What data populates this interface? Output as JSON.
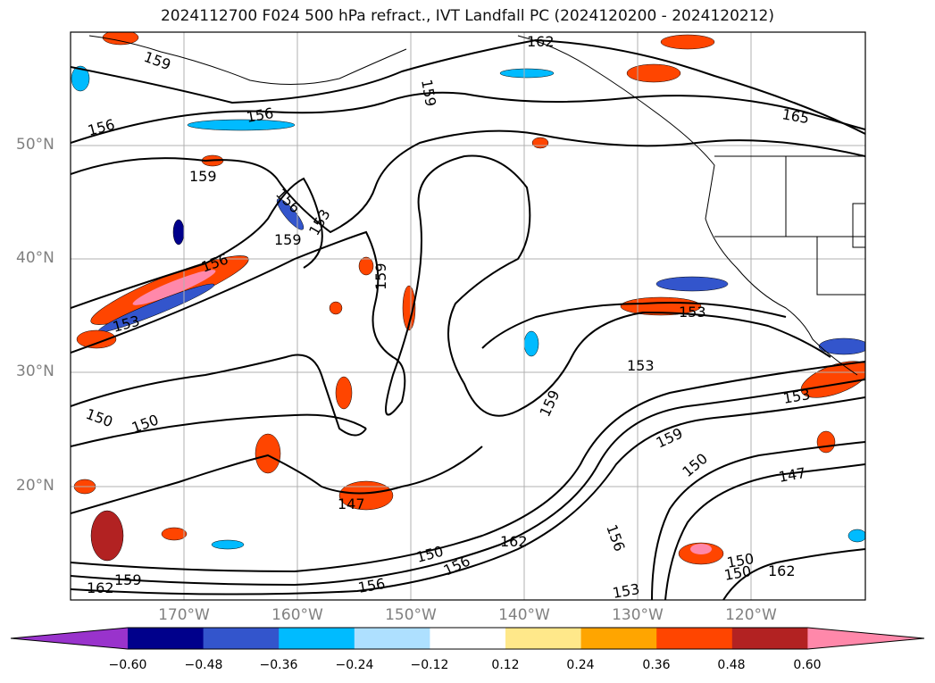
{
  "title": "2024112700 F024 500 hPa refract., IVT Landfall PC (2024120200 - 2024120212)",
  "map": {
    "lon_labels": [
      {
        "text": "170°W",
        "lon": -170
      },
      {
        "text": "160°W",
        "lon": -160
      },
      {
        "text": "150°W",
        "lon": -150
      },
      {
        "text": "140°W",
        "lon": -140
      },
      {
        "text": "130°W",
        "lon": -130
      },
      {
        "text": "120°W",
        "lon": -120
      }
    ],
    "lat_labels": [
      {
        "text": "50°N",
        "lat": 50
      },
      {
        "text": "40°N",
        "lat": 40
      },
      {
        "text": "30°N",
        "lat": 30
      },
      {
        "text": "20°N",
        "lat": 20
      }
    ],
    "lon_range": [
      -180,
      -110
    ],
    "lat_range": [
      10,
      60
    ],
    "contour_labels": [
      "159",
      "156",
      "162",
      "165",
      "159",
      "156",
      "153",
      "159",
      "156",
      "159",
      "153",
      "156",
      "153",
      "153",
      "159",
      "153",
      "150",
      "150",
      "147",
      "159",
      "159",
      "150",
      "147",
      "150",
      "162",
      "156",
      "156",
      "162",
      "153",
      "150",
      "159",
      "162",
      "150",
      "156"
    ],
    "contour_levels": [
      147,
      150,
      153,
      156,
      159,
      162,
      165
    ]
  },
  "colorbar": {
    "colors": [
      "#9933cc",
      "#00008b",
      "#3355cc",
      "#00bbff",
      "#aee0ff",
      "#ffffff",
      "#ffe88a",
      "#ffa500",
      "#ff4500",
      "#b22222",
      "#ff88aa"
    ],
    "ticks": [
      "−0.60",
      "−0.48",
      "−0.36",
      "−0.24",
      "−0.12",
      "0.12",
      "0.24",
      "0.36",
      "0.48",
      "0.60"
    ],
    "extend": "both"
  }
}
